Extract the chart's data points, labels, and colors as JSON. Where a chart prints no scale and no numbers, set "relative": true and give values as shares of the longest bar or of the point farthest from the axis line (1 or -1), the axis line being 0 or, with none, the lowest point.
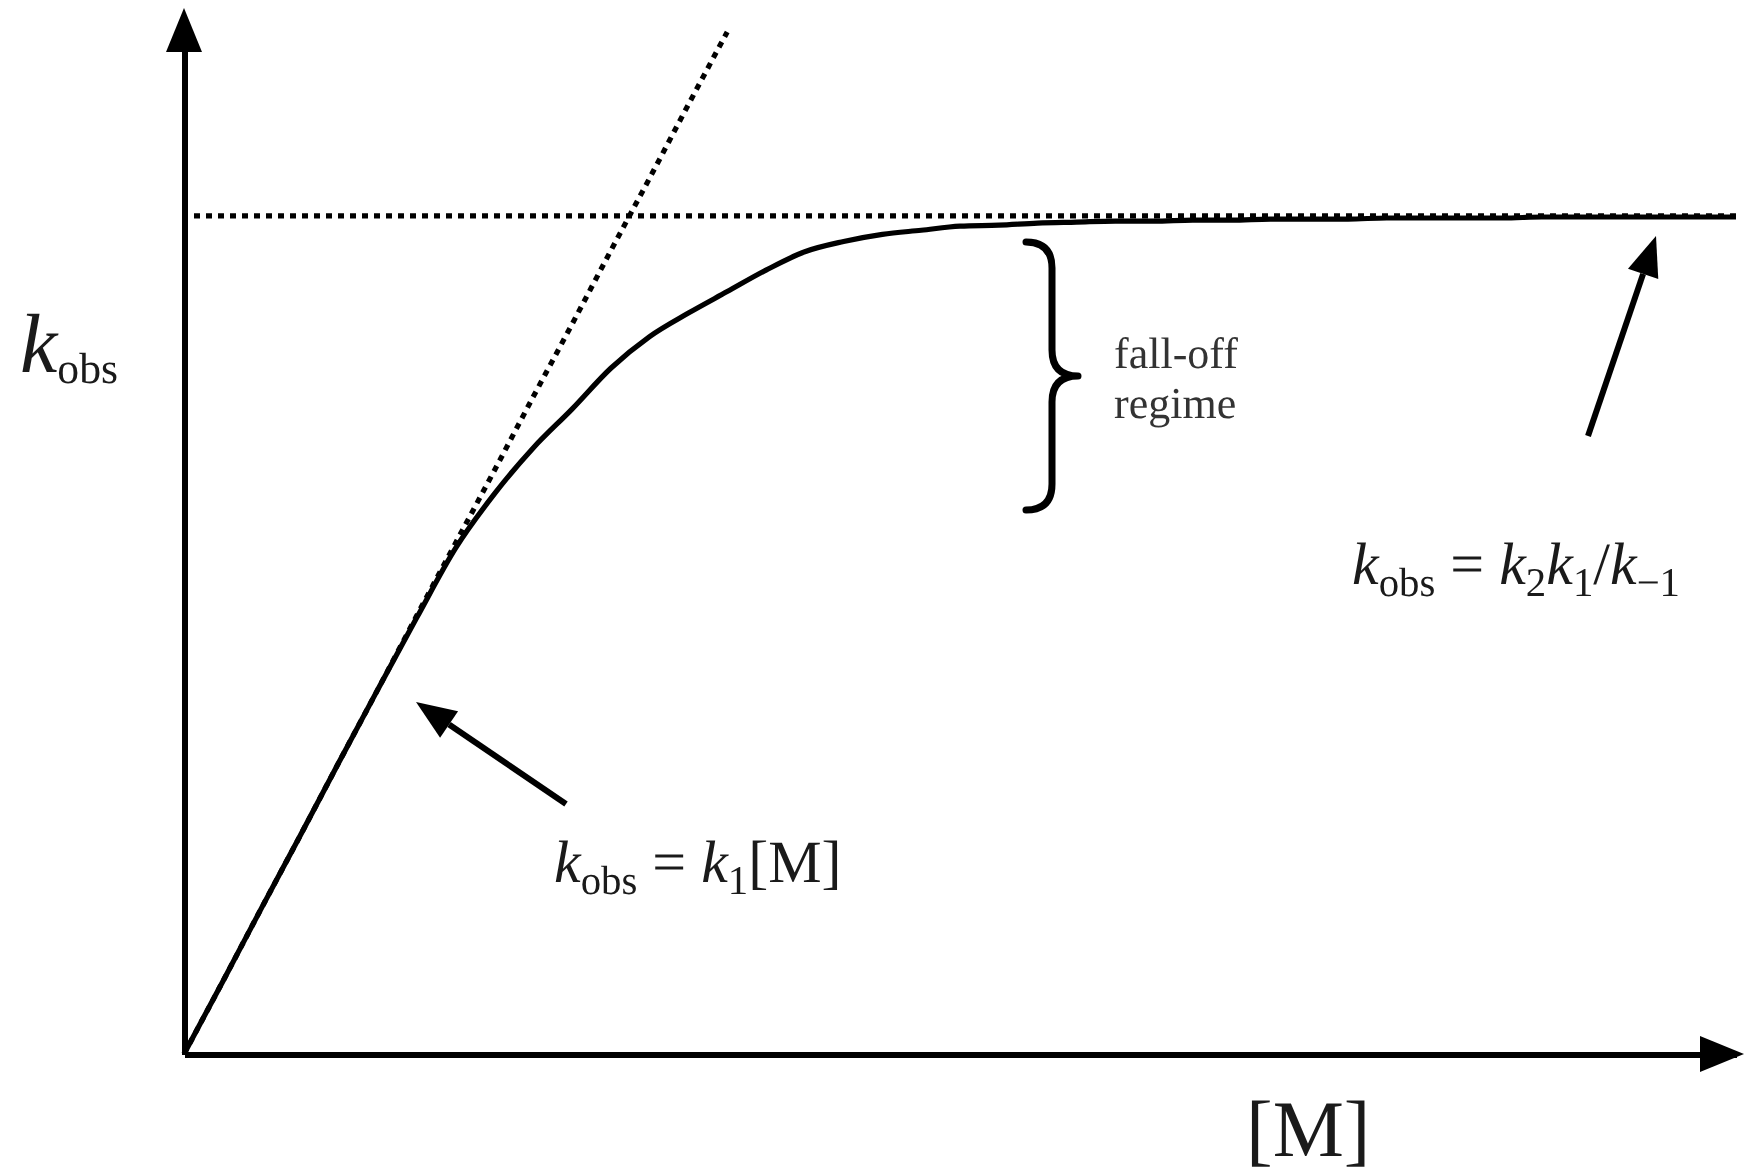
{
  "chart_data": {
    "type": "line",
    "relative": true,
    "xlabel": "[M]",
    "ylabel": "k$_{obs}$",
    "categories": [
      null,
      null,
      null,
      null,
      null,
      null,
      null,
      null,
      null,
      null,
      null,
      null,
      null,
      null,
      null,
      null,
      null,
      null,
      null,
      null,
      null,
      null,
      null,
      null,
      null,
      null,
      null,
      null,
      null,
      null,
      null,
      null,
      null,
      null,
      null,
      null,
      null,
      null,
      null,
      null,
      null
    ],
    "series": [
      {
        "color": "#000000",
        "line_style": "solid",
        "values": [
          0,
          0.071,
          0.143,
          0.214,
          0.286,
          0.357,
          0.427,
          0.495,
          0.548,
          0.593,
          0.631,
          0.671,
          0.702,
          0.725,
          0.746,
          0.767,
          0.785,
          0.795,
          0.802,
          0.806,
          0.81,
          0.811,
          0.813,
          0.814,
          0.815,
          0.815,
          0.816,
          0.816,
          0.817,
          0.817,
          0.817,
          0.818,
          0.818,
          0.818,
          0.818,
          0.819,
          0.819,
          0.819,
          0.819,
          0.819,
          0.819
        ]
      },
      {
        "color": "#000000",
        "line_style": "dotted",
        "values": [
          0,
          0.071,
          0.143,
          0.214,
          0.286,
          0.357,
          0.429,
          0.5,
          0.571,
          0.643,
          0.714,
          0.786,
          0.857,
          0.929,
          1,
          null,
          null,
          null,
          null,
          null,
          null,
          null,
          null,
          null,
          null,
          null,
          null,
          null,
          null,
          null,
          null,
          null,
          null,
          null,
          null,
          null,
          null,
          null,
          null,
          null,
          null
        ]
      }
    ],
    "ref_lines": [
      {
        "axis": "y",
        "value": 0.82,
        "color": "#000000",
        "line_style": "dotted"
      }
    ],
    "annotations": [
      "k$_{obs}$ = k$_{1}$[M]",
      "fall-off regime",
      "k$_{obs}$ = k$_{2}$k$_{1}$/k$_{−1}$"
    ]
  }
}
